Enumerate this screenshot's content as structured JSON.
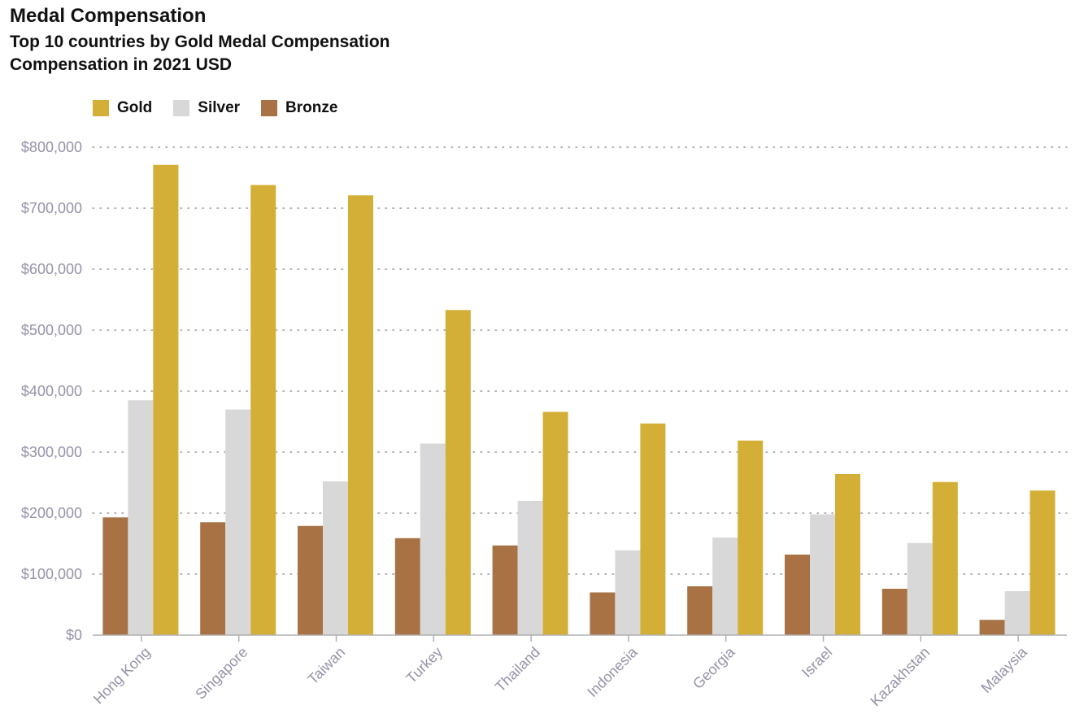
{
  "chart_data": {
    "type": "bar",
    "title": "Medal Compensation",
    "subtitle": "Top 10 countries by Gold Medal Compensation",
    "subtitle2": "Compensation in 2021 USD",
    "categories": [
      "Hong Kong",
      "Singapore",
      "Taiwan",
      "Turkey",
      "Thailand",
      "Indonesia",
      "Georgia",
      "Israel",
      "Kazakhstan",
      "Malaysia"
    ],
    "series": [
      {
        "name": "Bronze",
        "color": "#a87245",
        "values": [
          193000,
          185000,
          179000,
          159000,
          147000,
          70000,
          80000,
          132000,
          76000,
          25000
        ]
      },
      {
        "name": "Silver",
        "color": "#d8d8d8",
        "values": [
          385000,
          370000,
          252000,
          314000,
          220000,
          139000,
          160000,
          198000,
          151000,
          72000
        ]
      },
      {
        "name": "Gold",
        "color": "#d4af37",
        "values": [
          771000,
          738000,
          721000,
          533000,
          366000,
          347000,
          319000,
          264000,
          251000,
          237000
        ]
      }
    ],
    "legend": [
      "Gold",
      "Silver",
      "Bronze"
    ],
    "legend_position": "top-left",
    "yticks": [
      "$0",
      "$100,000",
      "$200,000",
      "$300,000",
      "$400,000",
      "$500,000",
      "$600,000",
      "$700,000",
      "$800,000"
    ],
    "ylim": [
      0,
      800000
    ],
    "grid": "horizontal-dotted",
    "xlabel": "",
    "ylabel": ""
  }
}
